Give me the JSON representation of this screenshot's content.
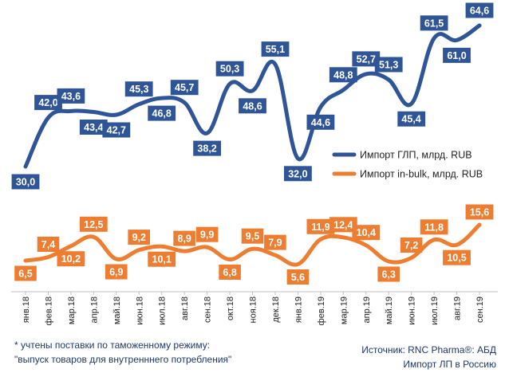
{
  "chart_data": {
    "type": "line",
    "categories": [
      "янв.18",
      "фев.18",
      "мар.18",
      "апр.18",
      "май.18",
      "июн.18",
      "июл.18",
      "авг.18",
      "сен.18",
      "окт.18",
      "ноя.18",
      "дек.18",
      "янв.19",
      "фев.19",
      "мар.19",
      "апр.19",
      "май.19",
      "июн.19",
      "июл.19",
      "авг.19",
      "сен.19"
    ],
    "series": [
      {
        "name": "Импорт ГЛП, млрд. RUB",
        "color": "#2f5597",
        "values": [
          30.0,
          42.0,
          43.6,
          43.4,
          42.7,
          45.3,
          46.8,
          45.7,
          38.2,
          50.3,
          48.6,
          55.1,
          32.0,
          44.6,
          48.8,
          52.7,
          51.3,
          45.4,
          61.5,
          61.0,
          64.6
        ],
        "labels": [
          "30,0",
          "42,0",
          "43,6",
          "43,4",
          "42,7",
          "45,3",
          "46,8",
          "45,7",
          "38,2",
          "50,3",
          "48,6",
          "55,1",
          "32,0",
          "44,6",
          "48,8",
          "52,7",
          "51,3",
          "45,4",
          "61,5",
          "61,0",
          "64,6"
        ]
      },
      {
        "name": "Импорт in-bulk, млрд. RUB",
        "color": "#ed7d31",
        "values": [
          6.5,
          7.4,
          10.2,
          12.5,
          6.9,
          9.2,
          10.1,
          8.9,
          9.9,
          6.8,
          9.5,
          7.9,
          5.6,
          11.9,
          12.4,
          10.4,
          6.3,
          7.2,
          11.8,
          10.5,
          15.6
        ],
        "labels": [
          "6,5",
          "7,4",
          "10,2",
          "12,5",
          "6,9",
          "9,2",
          "10,1",
          "8,9",
          "9,9",
          "6,8",
          "9,5",
          "7,9",
          "5,6",
          "11,9",
          "12,4",
          "10,4",
          "6,3",
          "7,2",
          "11,8",
          "10,5",
          "15,6"
        ]
      }
    ],
    "legend_position": "right",
    "grid": false
  },
  "notes": {
    "line1": "* учтены поставки по таможенному режиму:",
    "line2": "\"выпуск товаров для внутренннего потребления\""
  },
  "source": {
    "line1": "Источник: RNC Pharma®: АБД",
    "line2": "Импорт ЛП в Россию"
  }
}
